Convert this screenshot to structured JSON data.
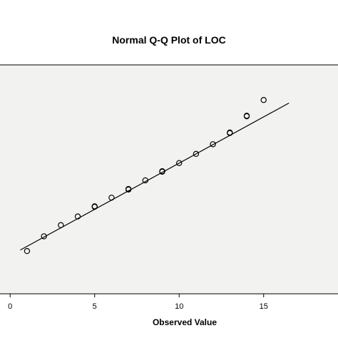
{
  "chart_data": {
    "type": "scatter",
    "title": "Normal Q-Q Plot of LOC",
    "xlabel": "Observed Value",
    "ylabel": "",
    "xlim": [
      -0.6,
      19.4
    ],
    "ylim": [
      -2.25,
      2.25
    ],
    "x_ticks": [
      {
        "value": 0,
        "label": "0"
      },
      {
        "value": 5,
        "label": "5"
      },
      {
        "value": 10,
        "label": "10"
      },
      {
        "value": 15,
        "label": "15"
      }
    ],
    "grid": false,
    "series": [
      {
        "kind": "points",
        "marker": "open-circle",
        "points": [
          {
            "x": 1,
            "y": -1.41
          },
          {
            "x": 2,
            "y": -1.12
          },
          {
            "x": 3,
            "y": -0.9
          },
          {
            "x": 4,
            "y": -0.73
          },
          {
            "x": 5,
            "y": -0.54
          },
          {
            "x": 5,
            "y": -0.53
          },
          {
            "x": 6,
            "y": -0.36
          },
          {
            "x": 7,
            "y": -0.2
          },
          {
            "x": 7,
            "y": -0.19
          },
          {
            "x": 8,
            "y": -0.02
          },
          {
            "x": 9,
            "y": 0.15
          },
          {
            "x": 9,
            "y": 0.16
          },
          {
            "x": 10,
            "y": 0.32
          },
          {
            "x": 11,
            "y": 0.5
          },
          {
            "x": 12,
            "y": 0.69
          },
          {
            "x": 13,
            "y": 0.91
          },
          {
            "x": 13,
            "y": 0.92
          },
          {
            "x": 14,
            "y": 1.24
          },
          {
            "x": 14,
            "y": 1.25
          },
          {
            "x": 15,
            "y": 1.56
          }
        ]
      },
      {
        "kind": "reference-line",
        "points": [
          {
            "x": 0.6,
            "y": -1.39
          },
          {
            "x": 16.5,
            "y": 1.5
          }
        ]
      }
    ],
    "colors": {
      "plot_background": "#f2f2f0",
      "frame": "#000000",
      "marker": "#000000",
      "line": "#000000"
    }
  }
}
